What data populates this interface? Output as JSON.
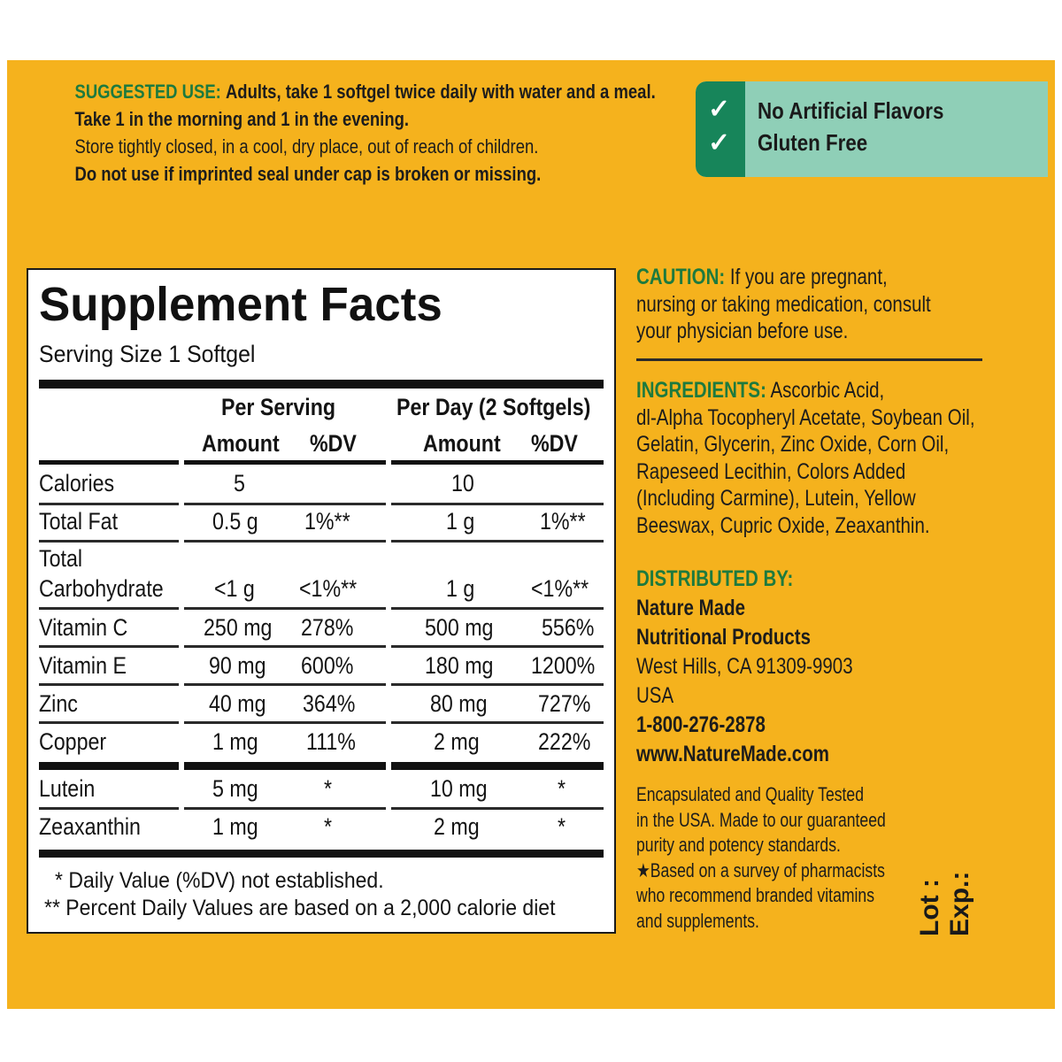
{
  "suggested_use": {
    "heading": "SUGGESTED USE:",
    "line1": "Adults, take 1 softgel twice daily with water and a meal.",
    "line2": "Take 1 in the morning and 1 in the evening.",
    "line3": "Store tightly closed, in a cool, dry place, out of reach of children.",
    "line4": "Do not use if imprinted seal under cap is broken or missing."
  },
  "badge": {
    "check_glyph": "✓",
    "item1": "No Artificial Flavors",
    "item2": "Gluten Free"
  },
  "facts": {
    "title": "Supplement Facts",
    "serving_size": "Serving Size 1 Softgel",
    "col_per_serving": "Per Serving",
    "col_per_day": "Per Day (2 Softgels)",
    "amount": "Amount",
    "dv": "%DV",
    "rows": [
      {
        "name": "Calories",
        "amt1": "5",
        "dv1": "",
        "amt2": "10",
        "dv2": ""
      },
      {
        "name": "Total Fat",
        "amt1": "0.5 g",
        "dv1": "1%**",
        "amt2": "1 g",
        "dv2": "1%**"
      },
      {
        "name1": "Total",
        "name": "Carbohydrate",
        "amt1": "<1 g",
        "dv1": "<1%**",
        "amt2": "1 g",
        "dv2": "<1%**"
      },
      {
        "name": "Vitamin C",
        "amt1": "250 mg",
        "dv1": "278%",
        "amt2": "500 mg",
        "dv2": "556%"
      },
      {
        "name": "Vitamin E",
        "amt1": "90 mg",
        "dv1": "600%",
        "amt2": "180 mg",
        "dv2": "1200%"
      },
      {
        "name": "Zinc",
        "amt1": "40 mg",
        "dv1": "364%",
        "amt2": "80 mg",
        "dv2": "727%"
      },
      {
        "name": "Copper",
        "amt1": "1 mg",
        "dv1": "111%",
        "amt2": "2 mg",
        "dv2": "222%"
      },
      {
        "name": "Lutein",
        "amt1": "5 mg",
        "dv1": "*",
        "amt2": "10 mg",
        "dv2": "*"
      },
      {
        "name": "Zeaxanthin",
        "amt1": "1 mg",
        "dv1": "*",
        "amt2": "2 mg",
        "dv2": "*"
      }
    ],
    "footnote1": "* Daily Value (%DV) not established.",
    "footnote2": "** Percent Daily Values are based on a 2,000 calorie diet"
  },
  "caution": {
    "heading": "CAUTION:",
    "line1": "If you are pregnant,",
    "line2": "nursing or taking medication, consult",
    "line3": "your physician before use."
  },
  "ingredients": {
    "heading": "INGREDIENTS:",
    "line1": "Ascorbic Acid,",
    "line2": "dl-Alpha Tocopheryl Acetate, Soybean Oil,",
    "line3": "Gelatin, Glycerin, Zinc Oxide, Corn Oil,",
    "line4": "Rapeseed Lecithin, Colors Added",
    "line5": "(Including Carmine), Lutein, Yellow",
    "line6": "Beeswax, Cupric Oxide, Zeaxanthin."
  },
  "distributed": {
    "heading": "DISTRIBUTED BY:",
    "line1": "Nature Made",
    "line2": "Nutritional Products",
    "line3": "West Hills, CA 91309-9903",
    "line4": "USA",
    "phone": "1-800-276-2878",
    "website": "www.NatureMade.com"
  },
  "quality": {
    "line1": "Encapsulated and Quality Tested",
    "line2": "in the USA. Made to our guaranteed",
    "line3": "purity and potency standards.",
    "line4": "★Based on a survey of pharmacists",
    "line5": "who recommend branded vitamins",
    "line6": "and supplements."
  },
  "lot": "Lot :",
  "exp": "Exp.:"
}
